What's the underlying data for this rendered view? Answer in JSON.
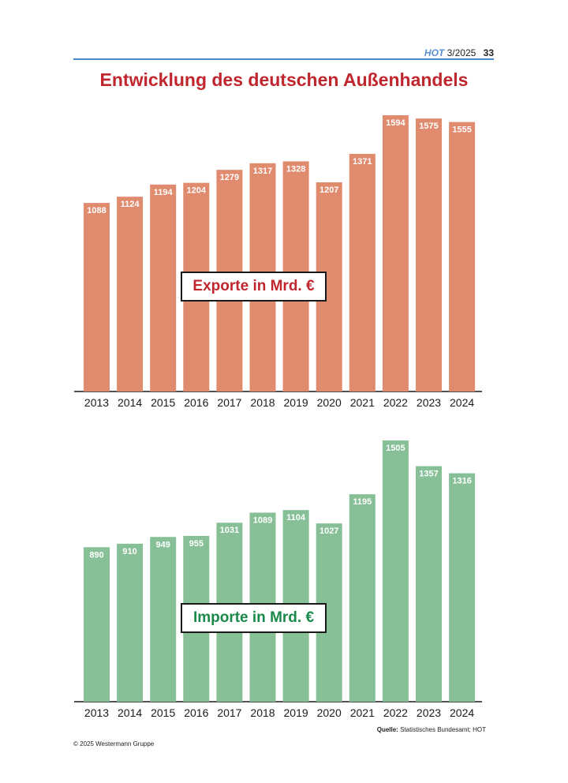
{
  "header": {
    "brand": "HOT",
    "issue": "3/2025",
    "page": "33"
  },
  "title": "Entwicklung des deutschen Außenhandels",
  "chart_data": [
    {
      "type": "bar",
      "label": "Exporte in Mrd. €",
      "categories": [
        "2013",
        "2014",
        "2015",
        "2016",
        "2017",
        "2018",
        "2019",
        "2020",
        "2021",
        "2022",
        "2023",
        "2024"
      ],
      "values": [
        1088,
        1124,
        1194,
        1204,
        1279,
        1317,
        1328,
        1207,
        1371,
        1594,
        1575,
        1555
      ],
      "color": "#e08a6e",
      "grid": false
    },
    {
      "type": "bar",
      "label": "Importe in Mrd. €",
      "categories": [
        "2013",
        "2014",
        "2015",
        "2016",
        "2017",
        "2018",
        "2019",
        "2020",
        "2021",
        "2022",
        "2023",
        "2024"
      ],
      "values": [
        890,
        910,
        949,
        955,
        1031,
        1089,
        1104,
        1027,
        1195,
        1505,
        1357,
        1316
      ],
      "color": "#87bf97",
      "grid": false
    }
  ],
  "source": {
    "label": "Quelle:",
    "text": " Statistisches Bundesamt; HOT"
  },
  "copyright": "© 2025 Westermann Gruppe"
}
